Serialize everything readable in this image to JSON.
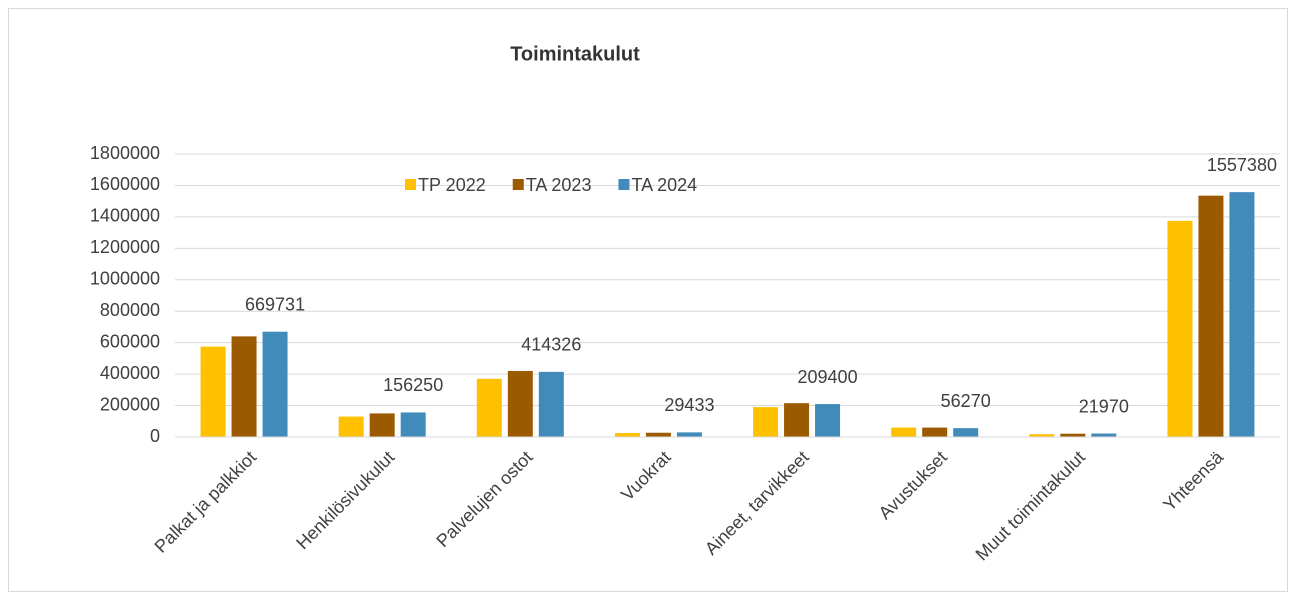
{
  "chart_data": {
    "type": "bar",
    "title": "Toimintakulut",
    "categories": [
      "Palkat ja palkkiot",
      "Henkilösivukulut",
      "Palvelujen ostot",
      "Vuokrat",
      "Aineet, tarvikkeet",
      "Avustukset",
      "Muut toimintakulut",
      "Yhteensä"
    ],
    "series": [
      {
        "name": "TP 2022",
        "color": "#ffc000",
        "values": [
          575000,
          130000,
          370000,
          25000,
          190000,
          60000,
          18000,
          1375000
        ]
      },
      {
        "name": "TA 2023",
        "color": "#9c5a00",
        "values": [
          640000,
          150000,
          420000,
          27000,
          215000,
          60000,
          21000,
          1535000
        ]
      },
      {
        "name": "TA 2024",
        "color": "#418bbb",
        "values": [
          669731,
          156250,
          414326,
          29433,
          209400,
          56270,
          21970,
          1557380
        ],
        "data_labels": true
      }
    ],
    "ylim": [
      0,
      1800000
    ],
    "yticks": [
      0,
      200000,
      400000,
      600000,
      800000,
      1000000,
      1200000,
      1400000,
      1600000,
      1800000
    ],
    "grid": true,
    "legend": "top"
  }
}
